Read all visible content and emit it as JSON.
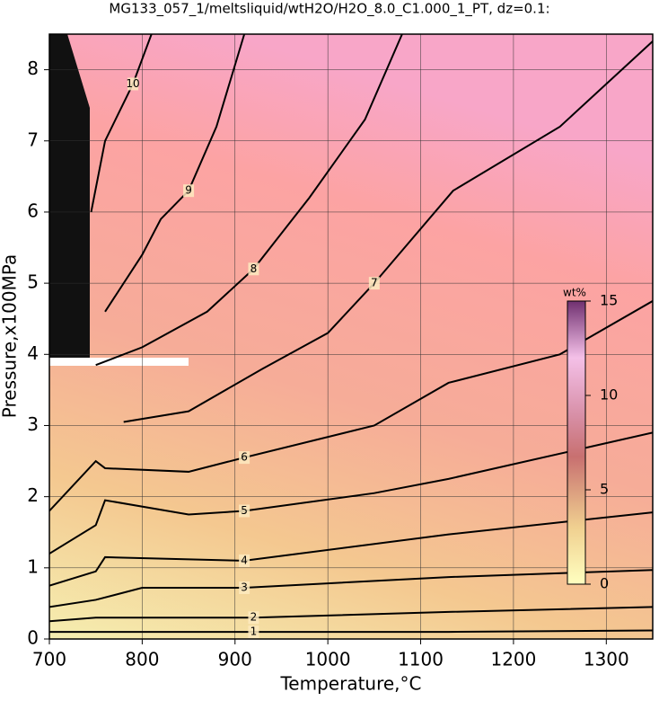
{
  "chart_data": {
    "type": "contour",
    "title": "MG133_057_1/meltsliquid/wtH2O/H2O_8.0_C1.000_1_PT, dz=0.1:",
    "x_label": "Temperature,°C",
    "y_label": "Pressure,x100MPa",
    "xlim": [
      700,
      1350
    ],
    "ylim": [
      0,
      8.5
    ],
    "xticks": [
      700,
      800,
      900,
      1000,
      1100,
      1200,
      1300
    ],
    "yticks": [
      0,
      1,
      2,
      3,
      4,
      5,
      6,
      7,
      8
    ],
    "grid": true,
    "contours": [
      {
        "level": 1,
        "x": [
          700,
          800,
          920,
          1130,
          1350
        ],
        "y": [
          0.1,
          0.1,
          0.1,
          0.1,
          0.12
        ]
      },
      {
        "level": 2,
        "x": [
          700,
          750,
          920,
          1130,
          1350
        ],
        "y": [
          0.25,
          0.3,
          0.3,
          0.38,
          0.45
        ]
      },
      {
        "level": 3,
        "x": [
          700,
          750,
          800,
          910,
          1130,
          1350
        ],
        "y": [
          0.45,
          0.55,
          0.72,
          0.72,
          0.87,
          0.97
        ]
      },
      {
        "level": 4,
        "x": [
          700,
          750,
          760,
          910,
          1130,
          1350
        ],
        "y": [
          0.75,
          0.95,
          1.15,
          1.1,
          1.47,
          1.78
        ]
      },
      {
        "level": 5,
        "x": [
          700,
          750,
          760,
          850,
          910,
          1050,
          1130,
          1350
        ],
        "y": [
          1.2,
          1.6,
          1.95,
          1.75,
          1.8,
          2.05,
          2.25,
          2.9
        ]
      },
      {
        "level": 6,
        "x": [
          700,
          750,
          760,
          850,
          910,
          1050,
          1130,
          1250,
          1350
        ],
        "y": [
          1.8,
          2.5,
          2.4,
          2.35,
          2.55,
          3.0,
          3.6,
          4.0,
          4.75
        ]
      },
      {
        "level": 7,
        "x": [
          780,
          850,
          930,
          1000,
          1050,
          1135,
          1250,
          1350
        ],
        "y": [
          3.05,
          3.2,
          3.8,
          4.3,
          5.0,
          6.3,
          7.2,
          8.4
        ]
      },
      {
        "level": 8,
        "x": [
          750,
          800,
          870,
          920,
          980,
          1040,
          1080
        ],
        "y": [
          3.85,
          4.1,
          4.6,
          5.2,
          6.2,
          7.3,
          8.5
        ]
      },
      {
        "level": 9,
        "x": [
          760,
          800,
          820,
          850,
          880,
          910
        ],
        "y": [
          4.6,
          5.4,
          5.9,
          6.3,
          7.2,
          8.5
        ]
      },
      {
        "level": 10,
        "x": [
          745,
          760,
          790,
          810
        ],
        "y": [
          6.0,
          7.0,
          7.8,
          8.5
        ]
      }
    ],
    "colorbar": {
      "label": "wt%",
      "lim": [
        0,
        15
      ],
      "ticks": [
        0,
        5,
        10,
        15
      ]
    }
  }
}
